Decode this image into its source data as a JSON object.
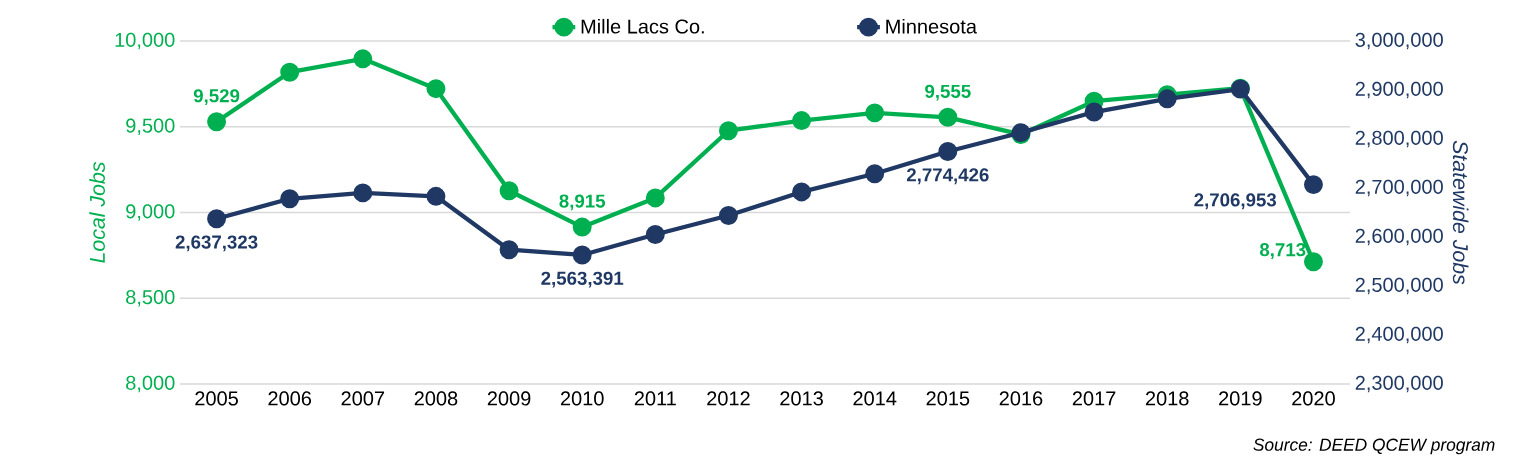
{
  "chart_data": {
    "type": "line",
    "categories": [
      "2005",
      "2006",
      "2007",
      "2008",
      "2009",
      "2010",
      "2011",
      "2012",
      "2013",
      "2014",
      "2015",
      "2016",
      "2017",
      "2018",
      "2019",
      "2020"
    ],
    "series": [
      {
        "name": "Mille Lacs Co.",
        "color": "#00b050",
        "values": [
          9529,
          9818,
          9896,
          9722,
          9127,
          8915,
          9085,
          9477,
          9536,
          9581,
          9555,
          9455,
          9649,
          9687,
          9725,
          8713
        ],
        "value_labels": [
          "9,529",
          null,
          null,
          null,
          null,
          "8,915",
          null,
          null,
          null,
          null,
          "9,555",
          null,
          null,
          null,
          null,
          "8,713"
        ]
      },
      {
        "name": "Minnesota",
        "color": "#1f3864",
        "axis": "y2",
        "values": [
          2637323,
          2678000,
          2690000,
          2683000,
          2574000,
          2563391,
          2605000,
          2644000,
          2692000,
          2729000,
          2774426,
          2813000,
          2855000,
          2882000,
          2902000,
          2706953
        ],
        "value_labels": [
          "2,637,323",
          null,
          null,
          null,
          null,
          "2,563,391",
          null,
          null,
          null,
          null,
          "2,774,426",
          null,
          null,
          null,
          null,
          "2,706,953"
        ]
      }
    ],
    "ylabel": "Local Jobs",
    "y2label": "Statewide Jobs",
    "ylim": [
      8000,
      10000
    ],
    "yticks": [
      {
        "value": 8000,
        "label": "8,000"
      },
      {
        "value": 8500,
        "label": "8,500"
      },
      {
        "value": 9000,
        "label": "9,000"
      },
      {
        "value": 9500,
        "label": "9,500"
      },
      {
        "value": 10000,
        "label": "10,000"
      }
    ],
    "y2lim": [
      2300000,
      3000000
    ],
    "y2ticks": [
      {
        "value": 2300000,
        "label": "2,300,000"
      },
      {
        "value": 2400000,
        "label": "2,400,000"
      },
      {
        "value": 2500000,
        "label": "2,500,000"
      },
      {
        "value": 2600000,
        "label": "2,600,000"
      },
      {
        "value": 2700000,
        "label": "2,700,000"
      },
      {
        "value": 2800000,
        "label": "2,800,000"
      },
      {
        "value": 2900000,
        "label": "2,900,000"
      },
      {
        "value": 3000000,
        "label": "3,000,000"
      }
    ],
    "grid": "y",
    "legend": "top",
    "marker": "circle",
    "line_style": "solid",
    "annotations": [
      "Source: DEED QCEW program"
    ]
  }
}
